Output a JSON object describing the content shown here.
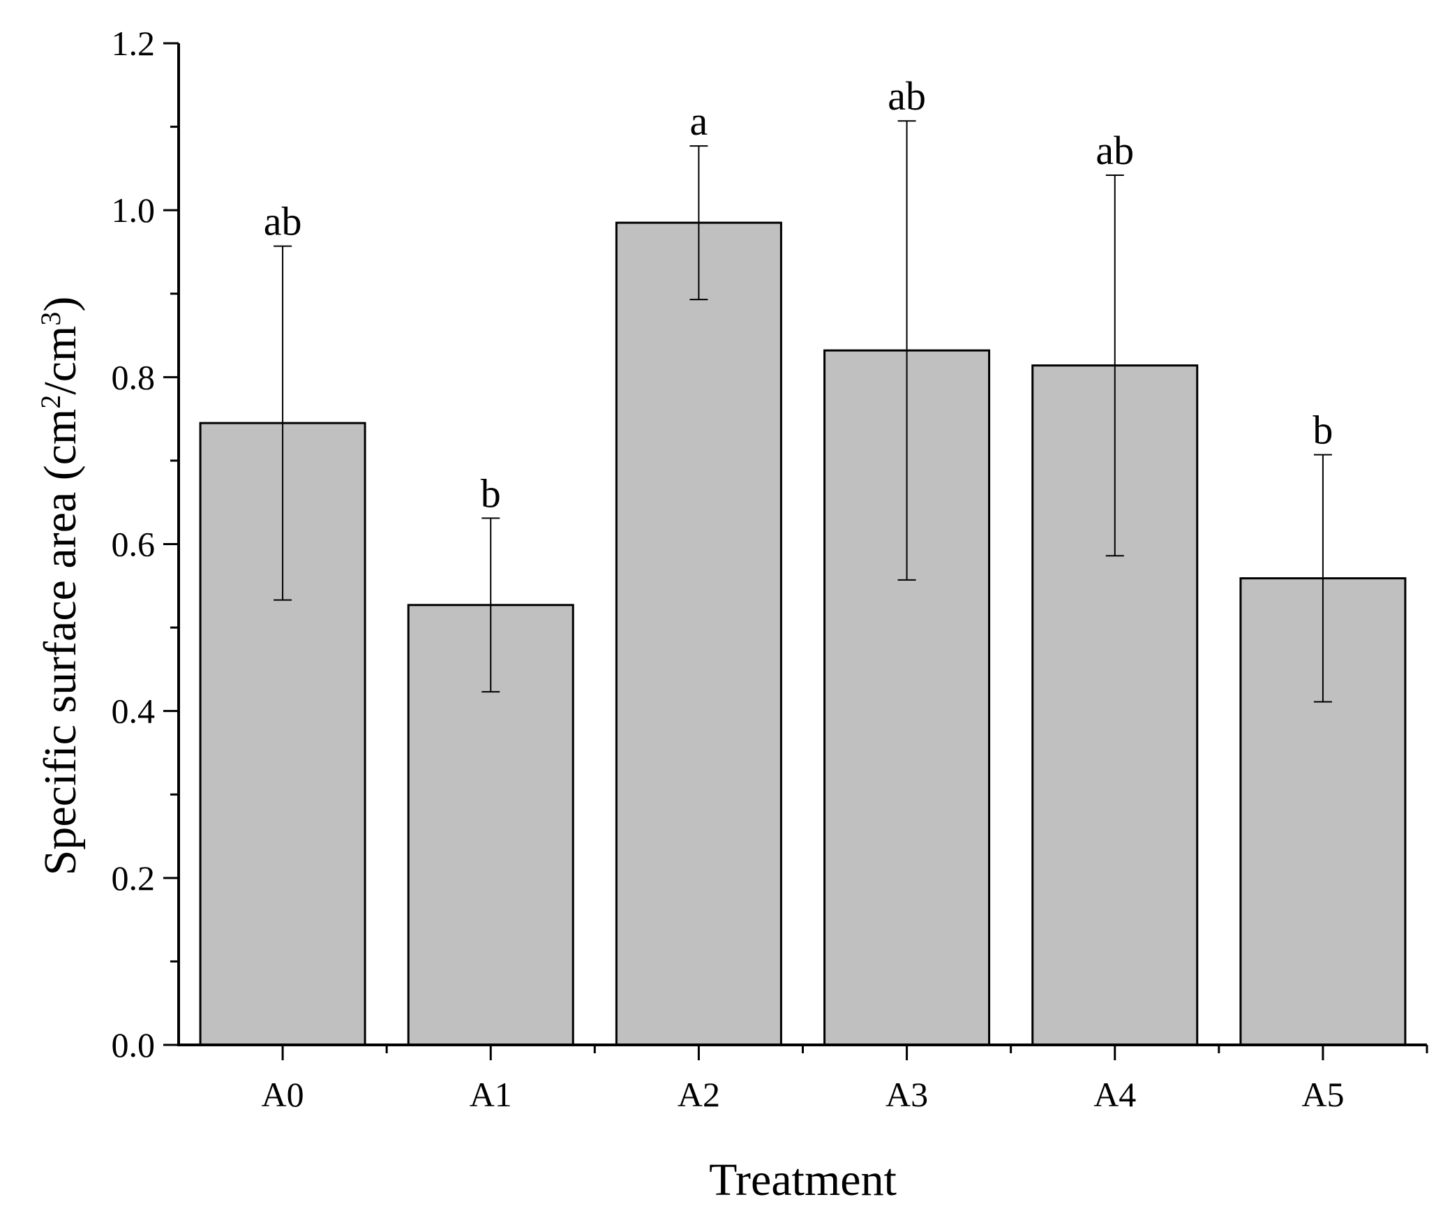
{
  "chart_data": {
    "type": "bar",
    "title": "",
    "xlabel": "Treatment",
    "ylabel": {
      "main": "Specific surface area (cm",
      "sup1": "2",
      "mid": "/cm",
      "sup2": "3",
      "end": ")"
    },
    "categories": [
      "A0",
      "A1",
      "A2",
      "A3",
      "A4",
      "A5"
    ],
    "values": [
      0.745,
      0.527,
      0.985,
      0.832,
      0.814,
      0.559
    ],
    "errors": [
      0.212,
      0.104,
      0.092,
      0.275,
      0.228,
      0.148
    ],
    "significance": [
      "ab",
      "b",
      "a",
      "ab",
      "ab",
      "b"
    ],
    "ylim": [
      0,
      1.2
    ],
    "yticks": [
      "0.0",
      "0.2",
      "0.4",
      "0.6",
      "0.8",
      "1.0",
      "1.2"
    ],
    "grid": false,
    "bar_color": "#c0c0c0",
    "axis_color": "#000000"
  }
}
